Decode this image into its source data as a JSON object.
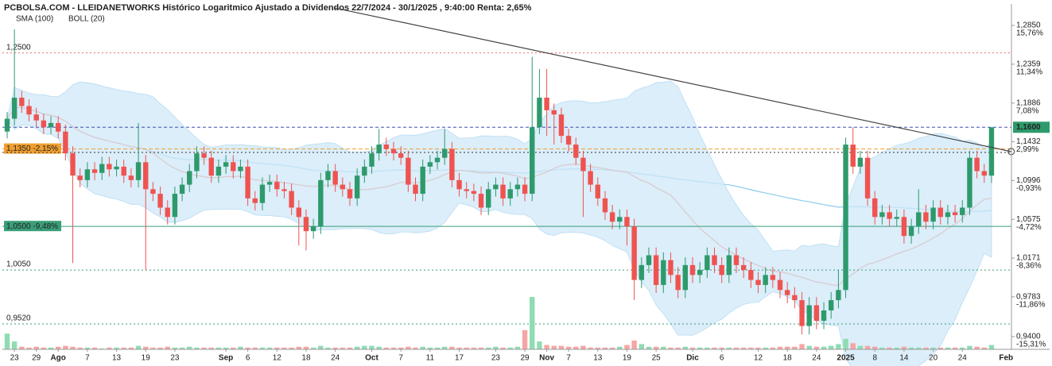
{
  "chart_data": {
    "type": "candlestick",
    "title": "PCBOLSA.COM - LLEIDANETWORKS Histórico Logaritmico Ajustado a Dividendos 22/7/2024 - 30/1/2025 , 9:40:00 Renta: 2,65%",
    "indicators": [
      {
        "name": "SMA (100)",
        "type": "sma",
        "period": 100,
        "color": "#8ccbf0"
      },
      {
        "name": "BOLL (20)",
        "type": "boll",
        "period": 20,
        "std": 2,
        "color": "#d9c9cc",
        "fill": "#cfe8f8"
      }
    ],
    "log_scale": true,
    "ylim": [
      0.928,
      1.313
    ],
    "yticks": [
      {
        "value": 1.285,
        "label": "1,2850"
      },
      {
        "value": 1.2359,
        "label": "1,2359"
      },
      {
        "value": 1.1886,
        "label": "1,1886"
      },
      {
        "value": 1.1432,
        "label": "1,1432"
      },
      {
        "value": 1.0996,
        "label": "1,0996"
      },
      {
        "value": 1.0575,
        "label": "1,0575"
      },
      {
        "value": 1.0171,
        "label": "1,0171"
      },
      {
        "value": 0.9783,
        "label": "0,9783"
      },
      {
        "value": 0.94,
        "label": "0,9400"
      }
    ],
    "ytick_pct": [
      "15,76%",
      "11,34%",
      "7,08%",
      "2,99%",
      "-0,93%",
      "-4,72%",
      "-8,36%",
      "-11,86%",
      "-15,31%"
    ],
    "categories": [
      null,
      "23",
      null,
      null,
      "29",
      null,
      null,
      "Ago",
      null,
      null,
      null,
      "7",
      null,
      null,
      null,
      "13",
      null,
      null,
      null,
      "19",
      null,
      null,
      null,
      "23",
      null,
      null,
      null,
      null,
      null,
      null,
      "Sep",
      null,
      null,
      "6",
      null,
      null,
      null,
      "12",
      null,
      null,
      null,
      "18",
      null,
      null,
      null,
      "24",
      null,
      null,
      null,
      null,
      "Oct",
      null,
      null,
      null,
      "7",
      null,
      null,
      null,
      "11",
      null,
      null,
      null,
      "17",
      null,
      null,
      null,
      null,
      "23",
      null,
      null,
      null,
      "29",
      null,
      null,
      "Nov",
      null,
      null,
      "7",
      null,
      null,
      null,
      "13",
      null,
      null,
      null,
      "19",
      null,
      null,
      null,
      "25",
      null,
      null,
      null,
      null,
      "Dic",
      null,
      null,
      null,
      "6",
      null,
      null,
      null,
      null,
      "12",
      null,
      null,
      null,
      "18",
      null,
      null,
      null,
      "24",
      null,
      null,
      null,
      "2025",
      null,
      null,
      null,
      "8",
      null,
      null,
      null,
      "14",
      null,
      null,
      null,
      "20",
      null,
      null,
      null,
      "24",
      null,
      null,
      null,
      null
    ],
    "x_end_label": "Feb",
    "open": [
      1.155,
      1.17,
      1.195,
      1.185,
      1.175,
      1.168,
      1.16,
      1.165,
      1.155,
      1.13,
      1.105,
      1.1,
      1.112,
      1.108,
      1.118,
      1.112,
      1.115,
      1.105,
      1.1,
      1.12,
      1.09,
      1.085,
      1.07,
      1.06,
      1.085,
      1.095,
      1.11,
      1.13,
      1.125,
      1.105,
      1.115,
      1.12,
      1.11,
      1.115,
      1.08,
      1.075,
      1.095,
      1.098,
      1.09,
      1.088,
      1.07,
      1.06,
      1.045,
      1.05,
      1.1,
      1.11,
      1.095,
      1.09,
      1.08,
      1.105,
      1.115,
      1.13,
      1.14,
      1.135,
      1.13,
      1.125,
      1.095,
      1.085,
      1.115,
      1.12,
      1.125,
      1.135,
      1.1,
      1.09,
      1.088,
      1.085,
      1.07,
      1.09,
      1.095,
      1.08,
      1.09,
      1.095,
      1.085,
      1.16,
      1.195,
      1.18,
      1.175,
      1.15,
      1.14,
      1.125,
      1.11,
      1.095,
      1.08,
      1.065,
      1.055,
      1.06,
      1.05,
      0.995,
      1.01,
      1.02,
      0.99,
      1.015,
      1.0,
      0.985,
      1.01,
      1.0,
      1.005,
      1.02,
      1.01,
      1.0,
      1.02,
      1.01,
      1.005,
      0.995,
      0.99,
      1.0,
      0.995,
      0.985,
      0.98,
      0.975,
      0.95,
      0.97,
      0.955,
      0.965,
      0.975,
      0.985,
      1.14,
      1.115,
      1.125,
      1.08,
      1.06,
      1.065,
      1.058,
      1.06,
      1.04,
      1.05,
      1.065,
      1.055,
      1.07,
      1.06,
      1.065,
      1.062,
      1.07,
      1.125,
      1.11,
      1.105
    ],
    "high": [
      1.178,
      1.28,
      1.203,
      1.193,
      1.183,
      1.176,
      1.173,
      1.173,
      1.163,
      1.138,
      1.113,
      1.12,
      1.12,
      1.126,
      1.126,
      1.123,
      1.123,
      1.113,
      1.165,
      1.128,
      1.098,
      1.093,
      1.078,
      1.093,
      1.103,
      1.118,
      1.138,
      1.138,
      1.133,
      1.123,
      1.128,
      1.128,
      1.123,
      1.123,
      1.088,
      1.103,
      1.106,
      1.106,
      1.098,
      1.096,
      1.078,
      1.068,
      1.058,
      1.108,
      1.118,
      1.118,
      1.103,
      1.098,
      1.113,
      1.123,
      1.138,
      1.158,
      1.148,
      1.143,
      1.138,
      1.133,
      1.103,
      1.123,
      1.128,
      1.133,
      1.158,
      1.143,
      1.108,
      1.098,
      1.096,
      1.093,
      1.098,
      1.103,
      1.103,
      1.098,
      1.103,
      1.103,
      1.245,
      1.23,
      1.23,
      1.188,
      1.183,
      1.158,
      1.148,
      1.133,
      1.118,
      1.103,
      1.088,
      1.073,
      1.068,
      1.068,
      1.058,
      1.018,
      1.028,
      1.028,
      1.023,
      1.023,
      1.008,
      1.018,
      1.018,
      1.013,
      1.028,
      1.028,
      1.018,
      1.028,
      1.028,
      1.018,
      1.013,
      1.003,
      1.008,
      1.008,
      1.003,
      0.993,
      0.988,
      0.983,
      0.978,
      0.978,
      0.973,
      0.983,
      1.005,
      1.148,
      1.16,
      1.133,
      1.133,
      1.088,
      1.073,
      1.073,
      1.068,
      1.068,
      1.058,
      1.09,
      1.073,
      1.078,
      1.078,
      1.073,
      1.073,
      1.078,
      1.133,
      1.133,
      1.118,
      1.16
    ],
    "low": [
      1.147,
      1.162,
      1.177,
      1.167,
      1.16,
      1.152,
      1.152,
      1.147,
      1.122,
      1.012,
      1.092,
      1.092,
      1.1,
      1.1,
      1.104,
      1.104,
      1.097,
      1.092,
      1.092,
      1.005,
      1.077,
      1.062,
      1.052,
      1.052,
      1.077,
      1.087,
      1.102,
      1.117,
      1.097,
      1.097,
      1.107,
      1.102,
      1.102,
      1.072,
      1.067,
      1.067,
      1.087,
      1.082,
      1.08,
      1.062,
      1.03,
      1.025,
      1.037,
      1.042,
      1.092,
      1.087,
      1.082,
      1.072,
      1.072,
      1.097,
      1.107,
      1.122,
      1.127,
      1.122,
      1.117,
      1.087,
      1.077,
      1.077,
      1.107,
      1.112,
      1.117,
      1.092,
      1.082,
      1.08,
      1.077,
      1.062,
      1.062,
      1.082,
      1.072,
      1.072,
      1.082,
      1.077,
      1.077,
      1.152,
      1.15,
      1.14,
      1.142,
      1.132,
      1.117,
      1.06,
      1.087,
      1.072,
      1.057,
      1.047,
      1.047,
      1.03,
      0.975,
      0.987,
      1.002,
      0.982,
      0.982,
      0.992,
      0.977,
      0.977,
      0.992,
      0.992,
      0.997,
      1.002,
      0.992,
      0.992,
      1.002,
      0.997,
      0.987,
      0.982,
      0.982,
      0.987,
      0.977,
      0.972,
      0.967,
      0.942,
      0.942,
      0.947,
      0.947,
      0.957,
      0.967,
      0.977,
      1.107,
      1.107,
      1.072,
      1.052,
      1.052,
      1.05,
      1.05,
      1.032,
      1.032,
      1.042,
      1.047,
      1.047,
      1.052,
      1.052,
      1.054,
      1.054,
      1.062,
      1.102,
      1.097,
      1.097
    ],
    "close": [
      1.17,
      1.195,
      1.185,
      1.175,
      1.168,
      1.16,
      1.165,
      1.155,
      1.13,
      1.105,
      1.1,
      1.112,
      1.108,
      1.118,
      1.112,
      1.115,
      1.105,
      1.1,
      1.12,
      1.09,
      1.085,
      1.07,
      1.06,
      1.085,
      1.095,
      1.11,
      1.13,
      1.125,
      1.105,
      1.115,
      1.12,
      1.11,
      1.115,
      1.08,
      1.075,
      1.095,
      1.098,
      1.09,
      1.088,
      1.07,
      1.06,
      1.045,
      1.05,
      1.1,
      1.11,
      1.095,
      1.09,
      1.08,
      1.105,
      1.115,
      1.13,
      1.14,
      1.135,
      1.13,
      1.125,
      1.095,
      1.085,
      1.115,
      1.12,
      1.125,
      1.135,
      1.1,
      1.09,
      1.088,
      1.085,
      1.07,
      1.09,
      1.095,
      1.08,
      1.09,
      1.095,
      1.085,
      1.16,
      1.195,
      1.18,
      1.175,
      1.15,
      1.14,
      1.125,
      1.11,
      1.095,
      1.08,
      1.065,
      1.055,
      1.06,
      1.05,
      0.995,
      1.01,
      1.02,
      0.99,
      1.015,
      1.0,
      0.985,
      1.01,
      1.0,
      1.005,
      1.02,
      1.01,
      1.0,
      1.02,
      1.01,
      1.005,
      0.995,
      0.99,
      1.0,
      0.995,
      0.985,
      0.98,
      0.975,
      0.95,
      0.97,
      0.955,
      0.965,
      0.975,
      0.985,
      1.14,
      1.115,
      1.125,
      1.08,
      1.06,
      1.065,
      1.058,
      1.06,
      1.04,
      1.05,
      1.065,
      1.055,
      1.07,
      1.06,
      1.065,
      1.062,
      1.07,
      1.125,
      1.11,
      1.105,
      1.16
    ],
    "volume": [
      18,
      9,
      3,
      2,
      3,
      2,
      2,
      3,
      4,
      3,
      2,
      2,
      2,
      1,
      2,
      2,
      2,
      2,
      4,
      3,
      2,
      2,
      3,
      2,
      2,
      3,
      2,
      2,
      2,
      2,
      2,
      2,
      3,
      2,
      2,
      2,
      2,
      2,
      2,
      2,
      3,
      3,
      2,
      4,
      2,
      2,
      2,
      2,
      3,
      4,
      4,
      3,
      2,
      2,
      2,
      3,
      2,
      3,
      2,
      2,
      3,
      3,
      2,
      2,
      2,
      2,
      2,
      3,
      2,
      2,
      3,
      22,
      60,
      9,
      5,
      4,
      4,
      3,
      3,
      4,
      2,
      2,
      2,
      2,
      3,
      5,
      10,
      6,
      3,
      3,
      3,
      2,
      2,
      3,
      2,
      2,
      2,
      2,
      2,
      2,
      2,
      2,
      2,
      2,
      2,
      2,
      3,
      3,
      3,
      6,
      4,
      3,
      3,
      4,
      6,
      12,
      7,
      4,
      4,
      3,
      2,
      2,
      2,
      3,
      2,
      2,
      2,
      2,
      2,
      2,
      2,
      2,
      4,
      3,
      2,
      5
    ],
    "up_color": "#2e9a6c",
    "down_color": "#ef5350",
    "up_volume_color": "#8fdcb3",
    "down_volume_color": "#f6a5a5",
    "levels": [
      {
        "value": 1.25,
        "label": "1,2500",
        "color": "#e57373",
        "style": "dotted"
      },
      {
        "value": 1.135,
        "label": "1,1350 -2,15%",
        "color": "#f0a030",
        "style": "dashed",
        "boxed": true
      },
      {
        "value": 1.131,
        "color": "#333333",
        "style": "dotted"
      },
      {
        "value": 1.05,
        "label": "1,0500 -9,48%",
        "color": "#3a9e78",
        "style": "solid",
        "boxed": true
      },
      {
        "value": 1.005,
        "label": "1,0050",
        "color": "#3a9e78",
        "style": "dotted"
      },
      {
        "value": 0.952,
        "label": "0,9520",
        "color": "#3a9e78",
        "style": "dotted"
      }
    ],
    "current": {
      "value": 1.16,
      "label": "1,1600",
      "color": "#3f51b5",
      "box_color": "#2e9a6c"
    },
    "trendline": {
      "x": [
        44.8,
        137.7
      ],
      "y": [
        1.308,
        1.132
      ],
      "color": "#444444"
    }
  }
}
